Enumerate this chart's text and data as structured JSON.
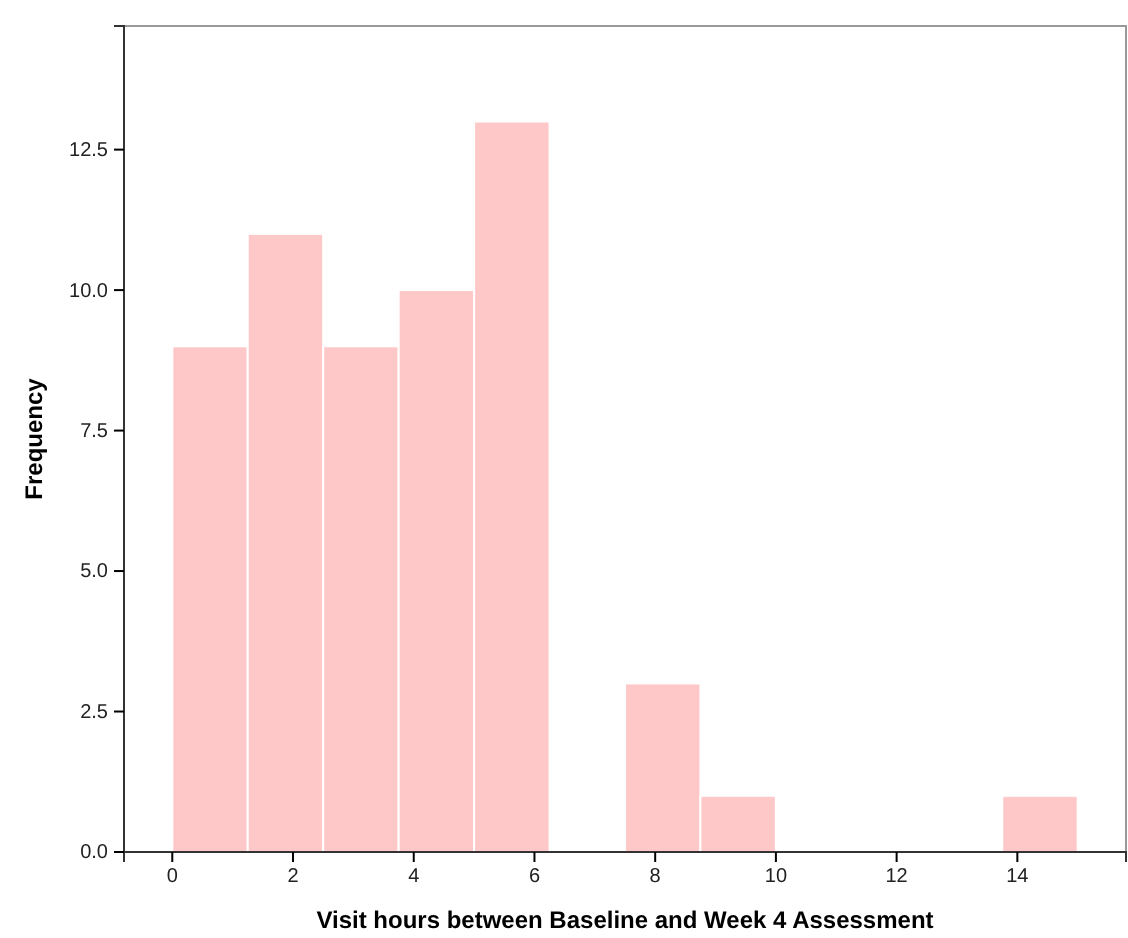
{
  "chart_data": {
    "type": "histogram",
    "xlabel": "Visit hours between Baseline and Week 4 Assessment",
    "ylabel": "Frequency",
    "bins": [
      0,
      1.25,
      2.5,
      3.75,
      5,
      6.25,
      7.5,
      8.75,
      10,
      11.25,
      12.5,
      13.75,
      15
    ],
    "values": [
      9,
      11,
      9,
      10,
      13,
      0,
      3,
      1,
      0,
      0,
      0,
      1
    ],
    "color": "#ffc8c8",
    "xlim": [
      -0.8,
      15.8
    ],
    "xticks": [
      0,
      2,
      4,
      6,
      8,
      10,
      12,
      14
    ],
    "ylim": [
      0,
      14.7
    ],
    "yticks": [
      {
        "value": 0,
        "label": "0.0"
      },
      {
        "value": 2.5,
        "label": "2.5"
      },
      {
        "value": 5,
        "label": "5.0"
      },
      {
        "value": 7.5,
        "label": "7.5"
      },
      {
        "value": 10,
        "label": "10.0"
      },
      {
        "value": 12.5,
        "label": "12.5"
      }
    ],
    "grid": false
  }
}
